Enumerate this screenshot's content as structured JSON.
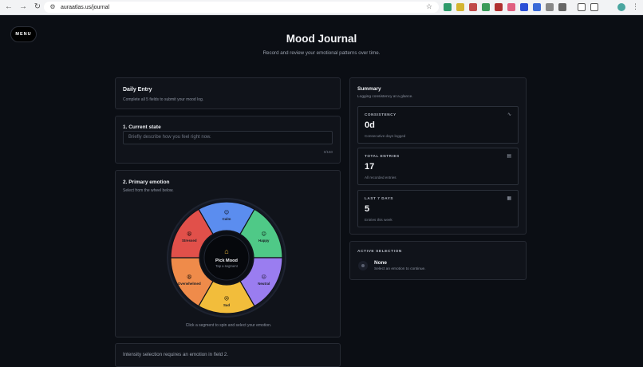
{
  "browser": {
    "url": "auraatlas.us/journal"
  },
  "header": {
    "menu_label": "MENU",
    "title": "Mood Journal",
    "subtitle": "Record and review your emotional patterns over time."
  },
  "daily_entry": {
    "title": "Daily Entry",
    "description": "Complete all 5 fields to submit your mood log."
  },
  "current_state": {
    "title": "1. Current state",
    "placeholder": "Briefly describe how you feel right now.",
    "counter": "0/160"
  },
  "primary_emotion": {
    "title": "2. Primary emotion",
    "description": "Select from the wheel below.",
    "center_title": "Pick Mood",
    "center_sub": "Tap a segment",
    "hint": "Click a segment to spin and select your emotion.",
    "segments": [
      {
        "label": "Calm",
        "emoji": "😌",
        "color": "#5b8def"
      },
      {
        "label": "Happy",
        "emoji": "😊",
        "color": "#4fc987"
      },
      {
        "label": "Neutral",
        "emoji": "😐",
        "color": "#9a7df0"
      },
      {
        "label": "Sad",
        "emoji": "😢",
        "color": "#f2bd3b"
      },
      {
        "label": "Overwhelmed",
        "emoji": "😩",
        "color": "#ef8b4a"
      },
      {
        "label": "Stressed",
        "emoji": "😫",
        "color": "#e1504a"
      }
    ]
  },
  "intensity": {
    "note": "Intensity selection requires an emotion in field 2."
  },
  "summary": {
    "title": "Summary",
    "description": "Logging consistency at a glance.",
    "stats": [
      {
        "label": "CONSISTENCY",
        "value": "0d",
        "caption": "Consecutive days logged",
        "icon": "activity-icon"
      },
      {
        "label": "TOTAL ENTRIES",
        "value": "17",
        "caption": "All recorded entries",
        "icon": "document-icon"
      },
      {
        "label": "LAST 7 DAYS",
        "value": "5",
        "caption": "Entries this week",
        "icon": "calendar-icon"
      }
    ]
  },
  "active_selection": {
    "label": "ACTIVE SELECTION",
    "value": "None",
    "caption": "Select an emotion to continue."
  }
}
